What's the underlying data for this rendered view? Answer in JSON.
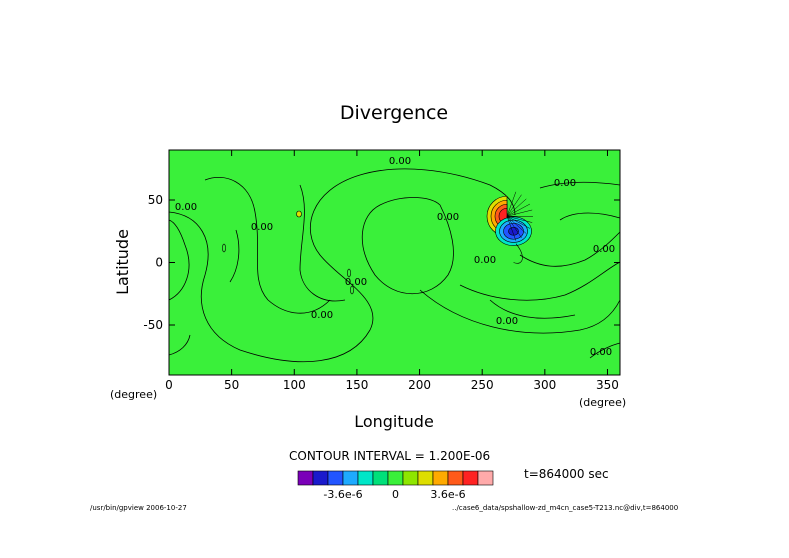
{
  "chart_data": {
    "type": "contour",
    "title": "Divergence",
    "xlabel": "Longitude",
    "ylabel": "Latitude",
    "x_unit_left": "(degree)",
    "x_unit_right": "(degree)",
    "xlim": [
      0,
      360
    ],
    "ylim": [
      -90,
      90
    ],
    "xticks": [
      0,
      50,
      100,
      150,
      200,
      250,
      300,
      350
    ],
    "yticks": [
      -50,
      0,
      50
    ],
    "contour_interval_text": "CONTOUR INTERVAL = 1.200E-06",
    "contour_label": "0.00",
    "time_text": "t=864000 sec",
    "colorbar": {
      "colors": [
        "#7a00b8",
        "#1a1acc",
        "#2255ff",
        "#1eaaff",
        "#00e6c8",
        "#00e07a",
        "#3af03a",
        "#8ee600",
        "#dede00",
        "#ffaa00",
        "#ff5a1a",
        "#ff2222",
        "#ffaaaa"
      ],
      "tick_labels": [
        "-3.6e-6",
        "0",
        "3.6e-6"
      ],
      "tick_values": [
        -3.6e-06,
        0,
        3.6e-06
      ]
    },
    "background_level_color": "#3af03a",
    "footer_left": "/usr/bin/gpview  2006-10-27",
    "footer_right": "../case6_data/spshallow-zd_m4cn_case5-T213.nc@div,t=864000"
  }
}
